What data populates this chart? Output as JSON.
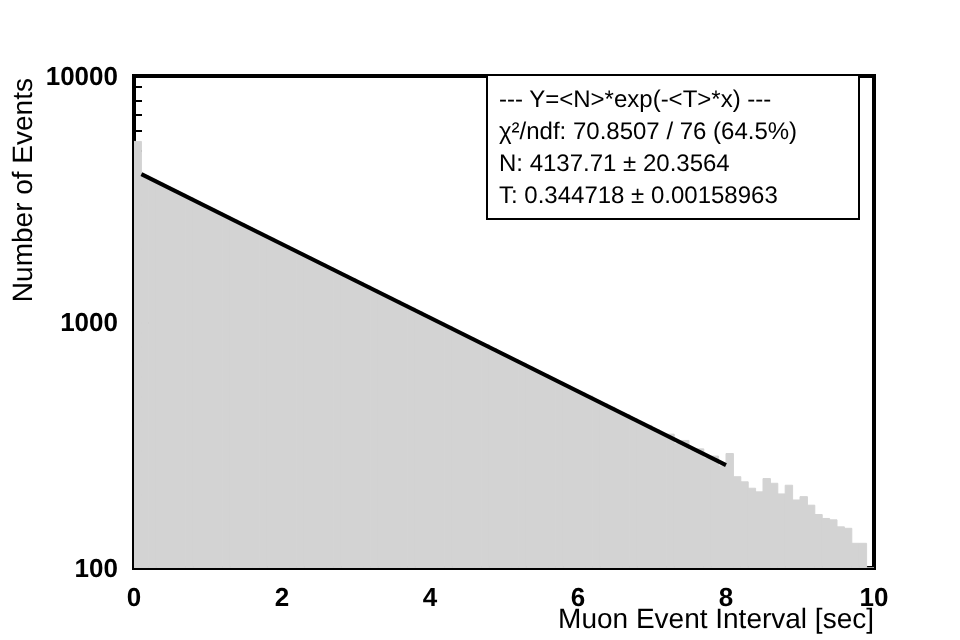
{
  "chart_data": {
    "type": "histogram",
    "xlabel": "Muon Event Interval [sec]",
    "ylabel": "Number of Events",
    "annotations": [
      "--- Y=<N>*exp(-<T>*x) ---",
      "χ²/ndf: 70.8507 / 76 (64.5%)",
      "N: 4137.71 ± 20.3564",
      "T: 0.344718 ± 0.00158963"
    ],
    "bins": [
      0,
      0.1,
      0.2,
      0.3,
      0.4,
      0.5,
      0.6,
      0.7,
      0.8,
      0.9,
      1,
      1.1,
      1.2,
      1.3,
      1.4,
      1.5,
      1.6,
      1.7,
      1.8,
      1.9,
      2,
      2.1,
      2.2,
      2.3,
      2.4,
      2.5,
      2.6,
      2.7,
      2.8,
      2.9,
      3,
      3.1,
      3.2,
      3.3,
      3.4,
      3.5,
      3.6,
      3.7,
      3.8,
      3.9,
      4,
      4.1,
      4.2,
      4.3,
      4.4,
      4.5,
      4.6,
      4.7,
      4.8,
      4.9,
      5,
      5.1,
      5.2,
      5.3,
      5.4,
      5.5,
      5.6,
      5.7,
      5.8,
      5.9,
      6,
      6.1,
      6.2,
      6.3,
      6.4,
      6.5,
      6.6,
      6.7,
      6.8,
      6.9,
      7,
      7.1,
      7.2,
      7.3,
      7.4,
      7.5,
      7.6,
      7.7,
      7.8,
      7.9,
      8,
      8.1,
      8.2,
      8.3,
      8.4,
      8.5,
      8.6,
      8.7,
      8.8,
      8.9,
      9,
      9.1,
      9.2,
      9.3,
      9.4,
      9.5,
      9.6,
      9.7,
      9.8,
      9.9,
      10
    ],
    "series": [
      {
        "color": "#d3d3d3",
        "values": [
          5420,
          3930,
          3800,
          3670,
          3540,
          3420,
          3310,
          3200,
          3090,
          2980,
          2880,
          2780,
          2690,
          2600,
          2510,
          2420,
          2340,
          2260,
          2190,
          2110,
          2040,
          1970,
          1900,
          1840,
          1780,
          1720,
          1660,
          1600,
          1550,
          1500,
          1450,
          1400,
          1350,
          1300,
          1260,
          1220,
          1180,
          1140,
          1100,
          1060,
          1020,
          990,
          960,
          920,
          890,
          860,
          830,
          810,
          780,
          750,
          720,
          700,
          680,
          655,
          630,
          610,
          590,
          570,
          550,
          530,
          515,
          500,
          480,
          465,
          450,
          430,
          420,
          405,
          390,
          380,
          365,
          350,
          350,
          320,
          330,
          300,
          305,
          280,
          285,
          260,
          292,
          235,
          224,
          211,
          204,
          231,
          221,
          200,
          217,
          189,
          195,
          180,
          165,
          159,
          157,
          147,
          145,
          126,
          126,
          100
        ]
      },
      {
        "type": "line",
        "color": "#000000",
        "x": [
          0.1,
          8.0
        ],
        "values": [
          3990,
          262
        ]
      }
    ],
    "xlim": [
      0,
      10
    ],
    "xticks": [
      0,
      2,
      4,
      6,
      8,
      10
    ],
    "ylim": [
      100,
      10000
    ],
    "yticks": [
      100,
      1000,
      10000
    ],
    "log": "y",
    "grid": false
  }
}
